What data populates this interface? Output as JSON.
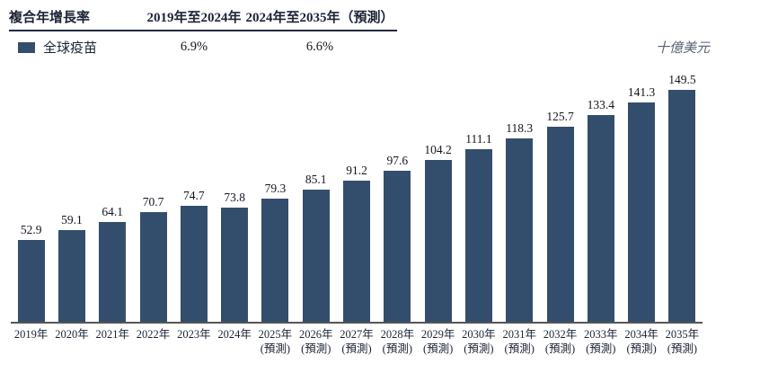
{
  "table": {
    "header": {
      "metric": "複合年增長率",
      "period1": "2019年至2024年",
      "period2": "2024年至2035年（預測）"
    },
    "row": {
      "legend_label": "全球疫苗",
      "cagr_period1": "6.9%",
      "cagr_period2": "6.6%"
    }
  },
  "unit_label": "十億美元",
  "colors": {
    "bar": "#334e6d",
    "axis": "#565656",
    "text": "#1c2335"
  },
  "chart_data": {
    "type": "bar",
    "title": "",
    "series_name": "全球疫苗",
    "unit": "十億美元",
    "categories": [
      "2019年",
      "2020年",
      "2021年",
      "2022年",
      "2023年",
      "2024年",
      "2025年",
      "2026年",
      "2027年",
      "2028年",
      "2029年",
      "2030年",
      "2031年",
      "2032年",
      "2033年",
      "2034年",
      "2035年"
    ],
    "category_notes": [
      "",
      "",
      "",
      "",
      "",
      "",
      "(預測)",
      "(預測)",
      "(預測)",
      "(預測)",
      "(預測)",
      "(預測)",
      "(預測)",
      "(預測)",
      "(預測)",
      "(預測)",
      "(預測)"
    ],
    "values": [
      52.9,
      59.1,
      64.1,
      70.7,
      74.7,
      73.8,
      79.3,
      85.1,
      91.2,
      97.6,
      104.2,
      111.1,
      118.3,
      125.7,
      133.4,
      141.3,
      149.5
    ],
    "value_label_decimals": 1,
    "ylim": [
      0,
      155
    ],
    "grid": false,
    "legend_position": "top-left-table",
    "cagr": {
      "2019-2024": "6.9%",
      "2024-2035 (forecast)": "6.6%"
    }
  }
}
